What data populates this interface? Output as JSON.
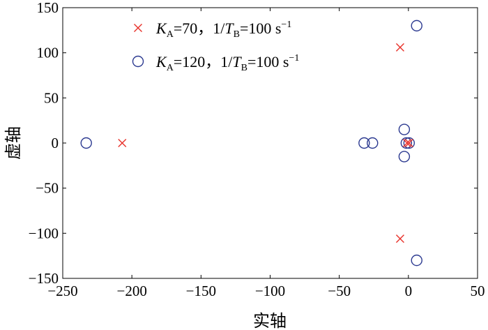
{
  "chart_data": {
    "type": "scatter",
    "xlabel": "实轴",
    "ylabel": "虚轴",
    "xlim": [
      -250,
      50
    ],
    "ylim": [
      -150,
      150
    ],
    "xticks": [
      -250,
      -200,
      -150,
      -100,
      -50,
      0,
      50
    ],
    "yticks": [
      -150,
      -100,
      -50,
      0,
      50,
      100,
      150
    ],
    "xtick_labels": [
      "−250",
      "−200",
      "−150",
      "−100",
      "−50",
      "0",
      "50"
    ],
    "ytick_labels": [
      "−150",
      "−100",
      "−50",
      "0",
      "50",
      "100",
      "150"
    ],
    "grid": false,
    "legend_position": "top-left",
    "series": [
      {
        "marker": "x",
        "color": "#e8322b",
        "legend": {
          "k": "K",
          "k_sub": "A",
          "eq1": "=70，",
          "t_pre": "1/",
          "t": "T",
          "t_sub": "B",
          "eq2": "=100 s",
          "sup": "−1"
        },
        "points": [
          {
            "x": -207,
            "y": 0
          },
          {
            "x": -6,
            "y": 106
          },
          {
            "x": -6,
            "y": -106
          },
          {
            "x": -1,
            "y": 0
          },
          {
            "x": 0.5,
            "y": 0
          }
        ]
      },
      {
        "marker": "o",
        "color": "#2b3990",
        "legend": {
          "k": "K",
          "k_sub": "A",
          "eq1": "=120，",
          "t_pre": "1/",
          "t": "T",
          "t_sub": "B",
          "eq2": "=100 s",
          "sup": "−1"
        },
        "points": [
          {
            "x": -233,
            "y": 0
          },
          {
            "x": 6,
            "y": 130
          },
          {
            "x": 6,
            "y": -130
          },
          {
            "x": -32,
            "y": 0
          },
          {
            "x": -26,
            "y": 0
          },
          {
            "x": -3,
            "y": 15
          },
          {
            "x": -3,
            "y": -15
          },
          {
            "x": -1.5,
            "y": 0
          },
          {
            "x": 0.5,
            "y": 0
          }
        ]
      }
    ]
  }
}
